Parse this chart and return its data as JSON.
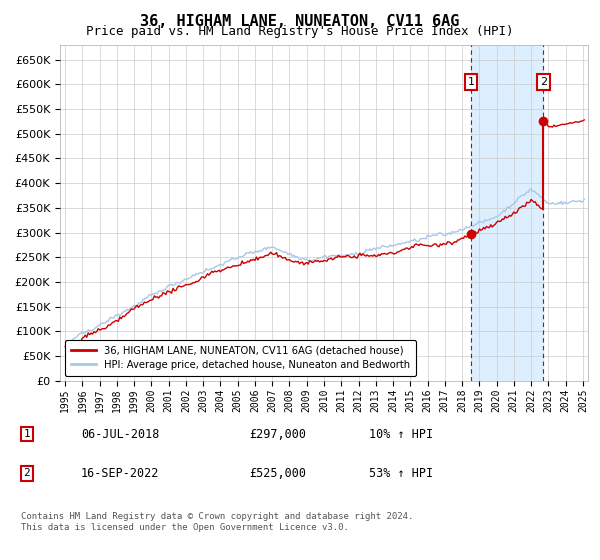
{
  "title": "36, HIGHAM LANE, NUNEATON, CV11 6AG",
  "subtitle": "Price paid vs. HM Land Registry's House Price Index (HPI)",
  "title_fontsize": 11,
  "subtitle_fontsize": 9,
  "ylim": [
    0,
    680000
  ],
  "yticks": [
    0,
    50000,
    100000,
    150000,
    200000,
    250000,
    300000,
    350000,
    400000,
    450000,
    500000,
    550000,
    600000,
    650000
  ],
  "xlim_start": 1994.7,
  "xlim_end": 2025.3,
  "xticks": [
    1995,
    1996,
    1997,
    1998,
    1999,
    2000,
    2001,
    2002,
    2003,
    2004,
    2005,
    2006,
    2007,
    2008,
    2009,
    2010,
    2011,
    2012,
    2013,
    2014,
    2015,
    2016,
    2017,
    2018,
    2019,
    2020,
    2021,
    2022,
    2023,
    2024,
    2025
  ],
  "hpi_color": "#a8c8e8",
  "sale_color": "#cc0000",
  "legend_sale_label": "36, HIGHAM LANE, NUNEATON, CV11 6AG (detached house)",
  "legend_hpi_label": "HPI: Average price, detached house, Nuneaton and Bedworth",
  "sale1_year": 2018.52,
  "sale1_price": 297000,
  "sale1_label": "06-JUL-2018",
  "sale1_amount": "£297,000",
  "sale1_hpi": "10% ↑ HPI",
  "sale2_year": 2022.71,
  "sale2_price": 525000,
  "sale2_label": "16-SEP-2022",
  "sale2_amount": "£525,000",
  "sale2_hpi": "53% ↑ HPI",
  "footer": "Contains HM Land Registry data © Crown copyright and database right 2024.\nThis data is licensed under the Open Government Licence v3.0.",
  "background_color": "#ffffff",
  "grid_color": "#cccccc",
  "shade_color": "#ddeeff"
}
